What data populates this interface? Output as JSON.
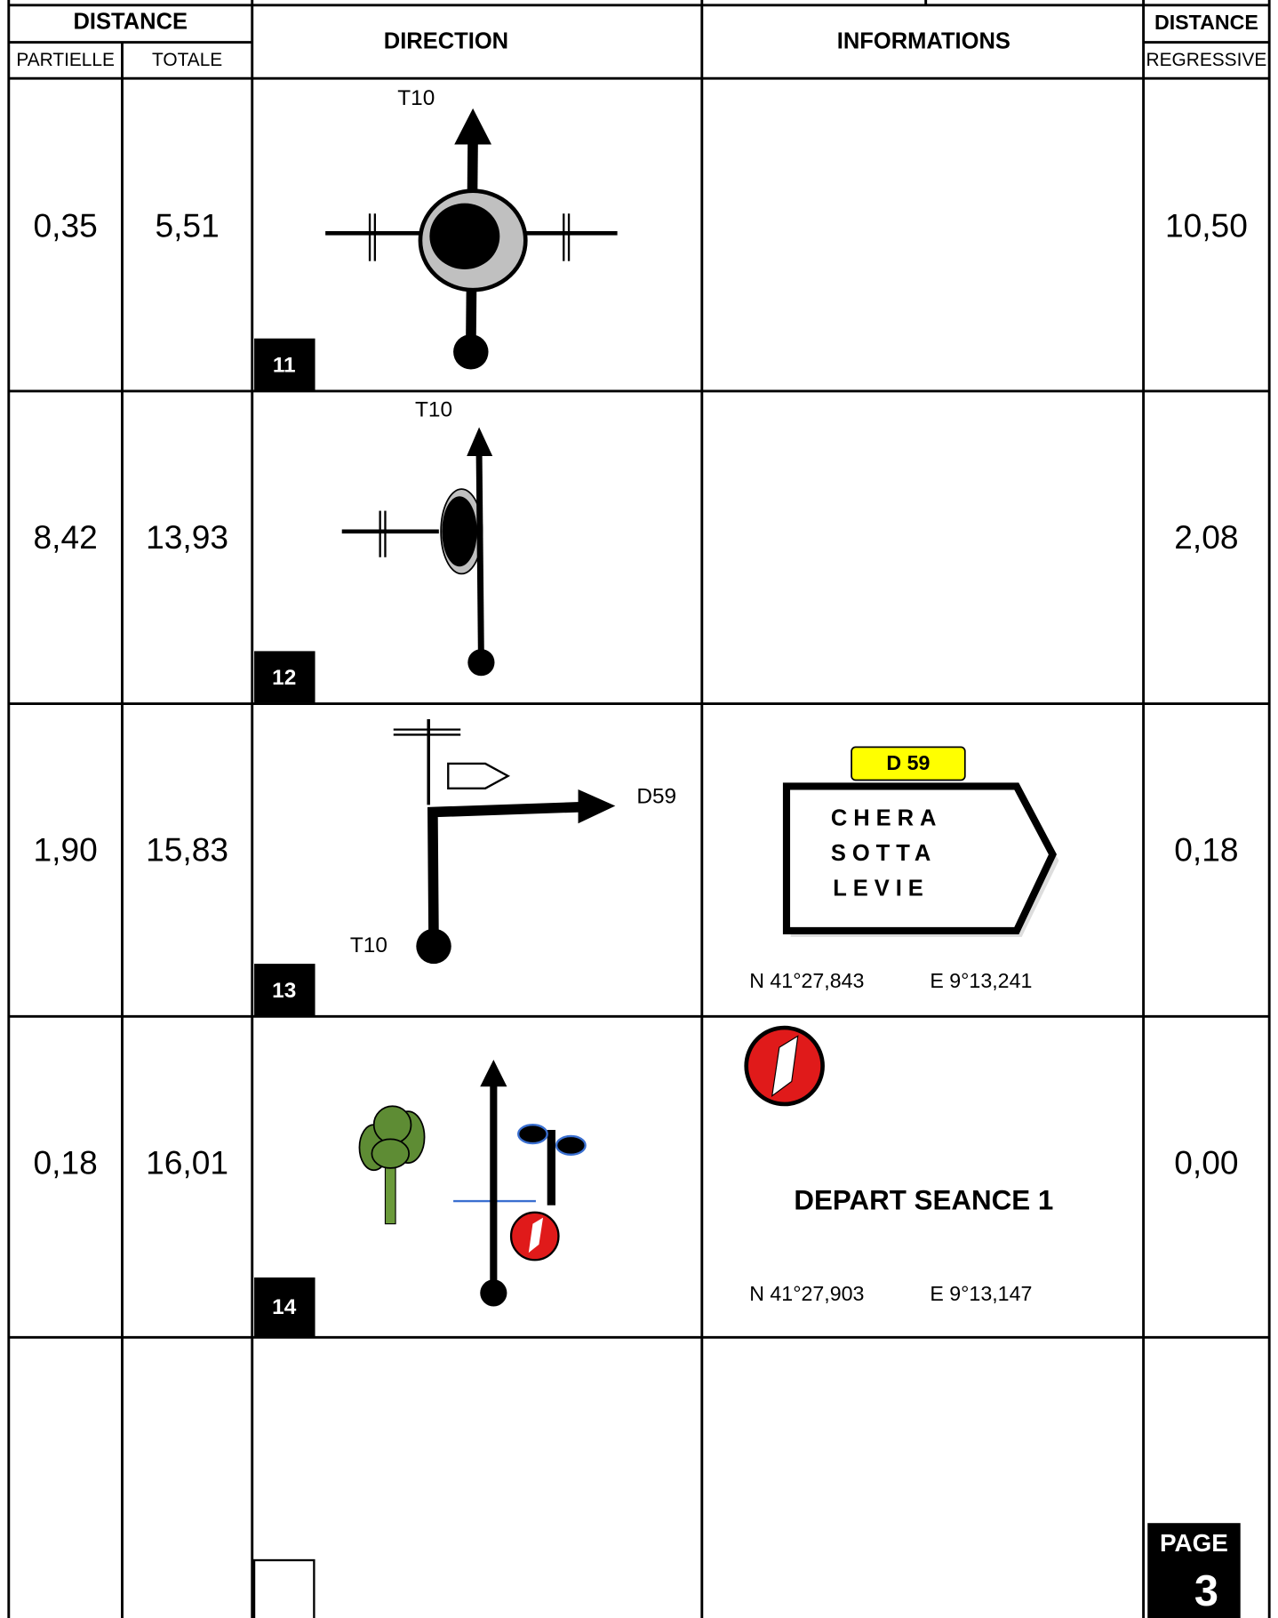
{
  "header": {
    "distance_left": "DISTANCE",
    "partielle": "PARTIELLE",
    "totale": "TOTALE",
    "direction": "DIRECTION",
    "informations": "INFORMATIONS",
    "distance_right": "DISTANCE",
    "regressive": "REGRESSIVE"
  },
  "rows": [
    {
      "partielle": "0,35",
      "totale": "5,51",
      "regressive": "10,50",
      "step": "11",
      "labels": [
        "T10"
      ]
    },
    {
      "partielle": "8,42",
      "totale": "13,93",
      "regressive": "2,08",
      "step": "12",
      "labels": [
        "T10"
      ]
    },
    {
      "partielle": "1,90",
      "totale": "15,83",
      "regressive": "0,18",
      "step": "13",
      "labels": [
        "D59",
        "T10"
      ],
      "sign": {
        "road": "D 59",
        "lines": [
          "CHERA",
          "SOTTA",
          "LEVIE"
        ]
      },
      "coords": [
        "N 41°27,843",
        "E 9°13,241"
      ]
    },
    {
      "partielle": "0,18",
      "totale": "16,01",
      "regressive": "0,00",
      "step": "14",
      "info": "DEPART SEANCE 1",
      "coords": [
        "N 41°27,903",
        "E 9°13,147"
      ]
    }
  ],
  "page": {
    "label": "PAGE",
    "number": "3"
  }
}
